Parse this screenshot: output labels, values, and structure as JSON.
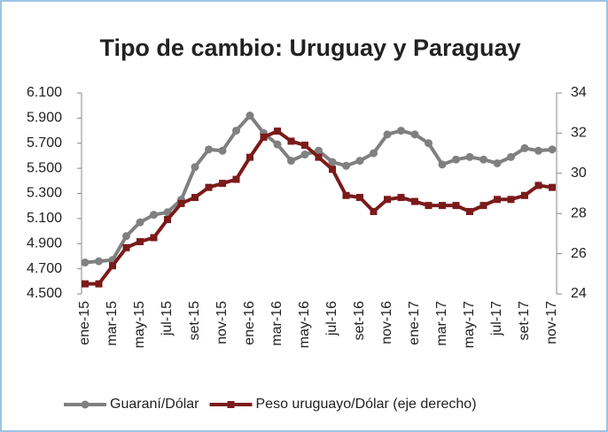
{
  "chart_data": {
    "type": "line",
    "title": "Tipo de cambio: Uruguay y Paraguay",
    "categories": [
      "ene-15",
      null,
      "mar-15",
      null,
      "may-15",
      null,
      "jul-15",
      null,
      "set-15",
      null,
      "nov-15",
      null,
      "ene-16",
      null,
      "mar-16",
      null,
      "may-16",
      null,
      "jul-16",
      null,
      "set-16",
      null,
      "nov-16",
      null,
      "ene-17",
      null,
      "mar-17",
      null,
      "may-17",
      null,
      "jul-17",
      null,
      "set-17",
      null,
      "nov-17"
    ],
    "series": [
      {
        "name": "Guaraní/Dólar",
        "color": "#808080",
        "marker": "circle",
        "values": [
          4750,
          4760,
          4770,
          4960,
          5070,
          5130,
          5150,
          5250,
          5510,
          5650,
          5640,
          5800,
          5920,
          5780,
          5690,
          5560,
          5610,
          5640,
          5550,
          5520,
          5560,
          5620,
          5770,
          5800,
          5770,
          5700,
          5530,
          5570,
          5590,
          5570,
          5540,
          5590,
          5660,
          5640,
          5650
        ]
      },
      {
        "name": "Peso uruguayo/Dólar (eje derecho)",
        "color": "#7b1a1a",
        "marker": "square",
        "axis": "y2",
        "values": [
          24.5,
          24.5,
          25.4,
          26.3,
          26.6,
          26.8,
          27.7,
          28.5,
          28.8,
          29.3,
          29.5,
          29.7,
          30.8,
          31.8,
          32.1,
          31.6,
          31.4,
          30.8,
          30.2,
          28.9,
          28.8,
          28.1,
          28.7,
          28.8,
          28.6,
          28.4,
          28.4,
          28.4,
          28.1,
          28.4,
          28.7,
          28.7,
          28.9,
          29.4,
          29.3
        ]
      }
    ],
    "ylim": [
      4500,
      6100
    ],
    "yticks": [
      {
        "value": 4500,
        "label": "4.500"
      },
      {
        "value": 4700,
        "label": "4.700"
      },
      {
        "value": 4900,
        "label": "4.900"
      },
      {
        "value": 5100,
        "label": "5.100"
      },
      {
        "value": 5300,
        "label": "5.300"
      },
      {
        "value": 5500,
        "label": "5.500"
      },
      {
        "value": 5700,
        "label": "5.700"
      },
      {
        "value": 5900,
        "label": "5.900"
      },
      {
        "value": 6100,
        "label": "6.100"
      }
    ],
    "y2lim": [
      24,
      34
    ],
    "y2ticks": [
      24,
      26,
      28,
      30,
      32,
      34
    ],
    "grid": false,
    "legend": "bottom"
  }
}
